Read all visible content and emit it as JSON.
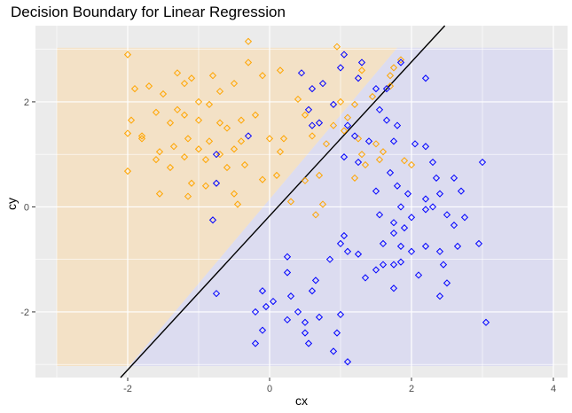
{
  "chart_data": {
    "type": "scatter",
    "title": "Decision Boundary for Linear Regression",
    "xlabel": "cx",
    "ylabel": "cy",
    "xlim": [
      -3.3,
      4.2
    ],
    "ylim": [
      -3.25,
      3.45
    ],
    "x_ticks": [
      -2,
      0,
      2,
      4
    ],
    "y_ticks": [
      -2,
      0,
      2
    ],
    "grid": true,
    "marker": "diamond-open",
    "boundary": {
      "x1": -2.1,
      "y1": -3.25,
      "x2": 2.47,
      "y2": 3.45
    },
    "regions": [
      {
        "name": "orange",
        "color": "#f5dfc0",
        "polygon": [
          [
            -3,
            3.03
          ],
          [
            1.8,
            3.03
          ],
          [
            -1.98,
            -3.03
          ],
          [
            -3,
            -3.03
          ]
        ]
      },
      {
        "name": "blue",
        "color": "#d9d9f1",
        "polygon": [
          [
            1.8,
            3.03
          ],
          [
            4,
            3.03
          ],
          [
            4,
            -3.03
          ],
          [
            -1.98,
            -3.03
          ]
        ]
      }
    ],
    "colors": {
      "panel": "#ebebeb",
      "grid_major": "#ffffff",
      "boundary": "#000000",
      "orange": "#ffa500",
      "blue": "#0000ff"
    },
    "series": [
      {
        "color": "#ffa500",
        "points": [
          [
            -2.0,
            2.9
          ],
          [
            -1.9,
            2.25
          ],
          [
            -1.7,
            2.3
          ],
          [
            -1.5,
            2.15
          ],
          [
            -1.3,
            2.55
          ],
          [
            -1.2,
            2.35
          ],
          [
            -1.1,
            2.45
          ],
          [
            -1.0,
            2.0
          ],
          [
            -0.8,
            2.5
          ],
          [
            -0.7,
            2.2
          ],
          [
            -0.5,
            2.35
          ],
          [
            -0.3,
            2.75
          ],
          [
            -0.1,
            2.5
          ],
          [
            0.15,
            2.6
          ],
          [
            -1.95,
            1.65
          ],
          [
            -1.8,
            1.35
          ],
          [
            -1.6,
            1.8
          ],
          [
            -1.4,
            1.6
          ],
          [
            -1.3,
            1.85
          ],
          [
            -1.2,
            1.75
          ],
          [
            -1.0,
            1.65
          ],
          [
            -0.85,
            1.95
          ],
          [
            -0.7,
            1.6
          ],
          [
            -0.6,
            1.5
          ],
          [
            -0.4,
            1.65
          ],
          [
            -0.2,
            1.75
          ],
          [
            -2.0,
            1.4
          ],
          [
            -1.8,
            1.3
          ],
          [
            -1.55,
            1.05
          ],
          [
            -1.35,
            1.15
          ],
          [
            -1.15,
            1.3
          ],
          [
            -1.0,
            1.1
          ],
          [
            -0.85,
            1.25
          ],
          [
            -0.7,
            1.0
          ],
          [
            -0.5,
            1.1
          ],
          [
            -0.4,
            1.25
          ],
          [
            -1.6,
            0.9
          ],
          [
            -1.4,
            0.75
          ],
          [
            -1.2,
            0.95
          ],
          [
            -0.9,
            0.9
          ],
          [
            -0.6,
            0.75
          ],
          [
            -0.35,
            0.8
          ],
          [
            -2.0,
            0.68
          ],
          [
            -1.55,
            0.25
          ],
          [
            -1.15,
            0.2
          ],
          [
            -1.1,
            0.45
          ],
          [
            -0.9,
            0.4
          ],
          [
            -0.5,
            0.25
          ],
          [
            -0.45,
            0.05
          ],
          [
            -0.1,
            0.52
          ],
          [
            0.1,
            0.6
          ],
          [
            0.0,
            1.3
          ],
          [
            0.15,
            1.05
          ],
          [
            0.2,
            1.3
          ],
          [
            0.4,
            2.05
          ],
          [
            0.5,
            1.75
          ],
          [
            0.6,
            1.35
          ],
          [
            0.8,
            1.2
          ],
          [
            0.9,
            1.55
          ],
          [
            1.0,
            2.0
          ],
          [
            1.05,
            1.45
          ],
          [
            1.1,
            1.7
          ],
          [
            1.2,
            1.95
          ],
          [
            1.25,
            1.3
          ],
          [
            1.3,
            2.6
          ],
          [
            -0.3,
            3.15
          ],
          [
            0.95,
            3.05
          ],
          [
            1.75,
            2.65
          ],
          [
            1.85,
            2.8
          ],
          [
            1.7,
            2.3
          ],
          [
            1.45,
            2.1
          ],
          [
            1.7,
            2.5
          ],
          [
            1.2,
            0.55
          ],
          [
            1.35,
            0.8
          ],
          [
            1.5,
            1.2
          ],
          [
            1.55,
            0.9
          ],
          [
            1.6,
            1.05
          ],
          [
            1.9,
            0.88
          ],
          [
            2.0,
            0.8
          ],
          [
            1.3,
            1.0
          ],
          [
            0.3,
            0.1
          ],
          [
            0.5,
            0.5
          ],
          [
            0.65,
            -0.15
          ],
          [
            0.7,
            0.6
          ],
          [
            0.75,
            0.05
          ]
        ]
      },
      {
        "color": "#0000ff",
        "points": [
          [
            0.45,
            2.55
          ],
          [
            0.6,
            2.25
          ],
          [
            0.75,
            2.35
          ],
          [
            1.05,
            2.9
          ],
          [
            1.0,
            2.65
          ],
          [
            1.25,
            2.45
          ],
          [
            1.3,
            2.75
          ],
          [
            1.5,
            2.25
          ],
          [
            1.65,
            2.25
          ],
          [
            1.85,
            2.75
          ],
          [
            2.2,
            2.45
          ],
          [
            0.55,
            1.85
          ],
          [
            0.6,
            1.55
          ],
          [
            0.7,
            1.6
          ],
          [
            0.9,
            1.95
          ],
          [
            1.1,
            1.55
          ],
          [
            1.2,
            1.35
          ],
          [
            1.4,
            1.25
          ],
          [
            1.55,
            1.85
          ],
          [
            1.65,
            1.65
          ],
          [
            1.75,
            1.25
          ],
          [
            1.8,
            1.55
          ],
          [
            -0.75,
            1.0
          ],
          [
            -0.3,
            1.35
          ],
          [
            1.05,
            0.95
          ],
          [
            1.25,
            0.85
          ],
          [
            2.2,
            1.15
          ],
          [
            2.3,
            0.85
          ],
          [
            2.05,
            1.2
          ],
          [
            -0.75,
            0.45
          ],
          [
            1.5,
            0.3
          ],
          [
            1.7,
            0.65
          ],
          [
            1.8,
            0.4
          ],
          [
            1.85,
            0.0
          ],
          [
            1.95,
            0.25
          ],
          [
            2.2,
            0.15
          ],
          [
            2.35,
            0.55
          ],
          [
            2.4,
            0.25
          ],
          [
            2.6,
            0.55
          ],
          [
            2.7,
            0.3
          ],
          [
            3.0,
            0.85
          ],
          [
            -0.8,
            -0.25
          ],
          [
            1.55,
            -0.15
          ],
          [
            1.75,
            -0.3
          ],
          [
            1.9,
            -0.4
          ],
          [
            2.0,
            -0.2
          ],
          [
            2.2,
            -0.05
          ],
          [
            2.3,
            0.0
          ],
          [
            2.5,
            -0.15
          ],
          [
            2.6,
            -0.35
          ],
          [
            2.75,
            -0.2
          ],
          [
            1.05,
            -0.55
          ],
          [
            1.1,
            -0.85
          ],
          [
            1.6,
            -0.7
          ],
          [
            1.75,
            -0.5
          ],
          [
            1.85,
            -0.75
          ],
          [
            2.0,
            -0.85
          ],
          [
            2.2,
            -0.75
          ],
          [
            2.4,
            -0.85
          ],
          [
            2.65,
            -0.75
          ],
          [
            2.95,
            -0.7
          ],
          [
            0.25,
            -0.95
          ],
          [
            0.85,
            -1.0
          ],
          [
            1.0,
            -0.7
          ],
          [
            1.25,
            -0.9
          ],
          [
            1.5,
            -1.2
          ],
          [
            1.6,
            -1.1
          ],
          [
            1.75,
            -1.1
          ],
          [
            1.85,
            -1.05
          ],
          [
            2.1,
            -1.3
          ],
          [
            2.45,
            -1.1
          ],
          [
            0.25,
            -1.25
          ],
          [
            0.65,
            -1.4
          ],
          [
            0.6,
            -1.6
          ],
          [
            1.35,
            -1.35
          ],
          [
            1.75,
            -1.55
          ],
          [
            2.4,
            -1.7
          ],
          [
            2.5,
            -1.45
          ],
          [
            -0.75,
            -1.65
          ],
          [
            -0.1,
            -1.6
          ],
          [
            0.05,
            -1.8
          ],
          [
            -0.05,
            -1.9
          ],
          [
            0.3,
            -1.7
          ],
          [
            0.4,
            -2.0
          ],
          [
            0.5,
            -2.2
          ],
          [
            0.7,
            -2.1
          ],
          [
            1.0,
            -2.05
          ],
          [
            3.05,
            -2.2
          ],
          [
            -0.2,
            -2.0
          ],
          [
            0.25,
            -2.15
          ],
          [
            -0.1,
            -2.35
          ],
          [
            -0.2,
            -2.6
          ],
          [
            0.5,
            -2.4
          ],
          [
            0.55,
            -2.6
          ],
          [
            0.95,
            -2.4
          ],
          [
            0.9,
            -2.75
          ],
          [
            1.1,
            -2.95
          ]
        ]
      }
    ]
  }
}
